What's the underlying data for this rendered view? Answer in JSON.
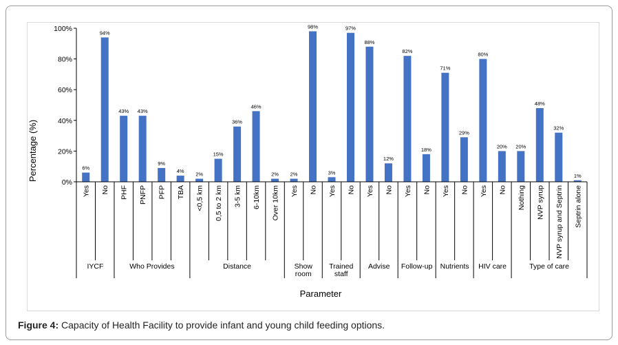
{
  "caption": {
    "label": "Figure 4:",
    "text": " Capacity of Health Facility to provide infant and young child feeding options."
  },
  "chart_data": {
    "type": "bar",
    "title": "",
    "xlabel": "Parameter",
    "ylabel": "Percentage (%)",
    "ylim": [
      0,
      100
    ],
    "yticks": [
      "0%",
      "20%",
      "40%",
      "60%",
      "80%",
      "100%"
    ],
    "grid": false,
    "legend": "none",
    "bar_color": "#4472c4",
    "categories": [
      "Yes",
      "No",
      "PHF",
      "PNFP",
      "PFP",
      "TBA",
      "<0,5 km",
      "0,5 to 2 km",
      "3-5 km",
      "6-10km",
      "Over 10km",
      "Yes",
      "No",
      "Yes",
      "No",
      "Yes",
      "No",
      "Yes",
      "No",
      "Yes",
      "No",
      "Yes",
      "No",
      "Nothing",
      "NVP syrup",
      "NVP syrup and Septrin",
      "Septrin alone"
    ],
    "values": [
      6,
      94,
      43,
      43,
      9,
      4,
      2,
      15,
      36,
      46,
      2,
      2,
      98,
      3,
      97,
      88,
      12,
      82,
      18,
      71,
      29,
      80,
      20,
      20,
      48,
      32,
      1
    ],
    "data_labels": [
      "6%",
      "94%",
      "43%",
      "43%",
      "9%",
      "4%",
      "2%",
      "15%",
      "36%",
      "46%",
      "2%",
      "2%",
      "98%",
      "3%",
      "97%",
      "88%",
      "12%",
      "82%",
      "18%",
      "71%",
      "29%",
      "80%",
      "20%",
      "20%",
      "48%",
      "32%",
      "1%"
    ],
    "groups": [
      {
        "lines": [
          "IYCF"
        ],
        "count": 2
      },
      {
        "lines": [
          "Who Provides"
        ],
        "count": 4
      },
      {
        "lines": [
          "Distance"
        ],
        "count": 5
      },
      {
        "lines": [
          "Show",
          "room"
        ],
        "count": 2
      },
      {
        "lines": [
          "Trained",
          "staff"
        ],
        "count": 2
      },
      {
        "lines": [
          "Advise"
        ],
        "count": 2
      },
      {
        "lines": [
          "Follow-up"
        ],
        "count": 2
      },
      {
        "lines": [
          "Nutrients"
        ],
        "count": 2
      },
      {
        "lines": [
          "HIV care"
        ],
        "count": 2
      },
      {
        "lines": [
          "Type of care"
        ],
        "count": 4
      }
    ]
  }
}
